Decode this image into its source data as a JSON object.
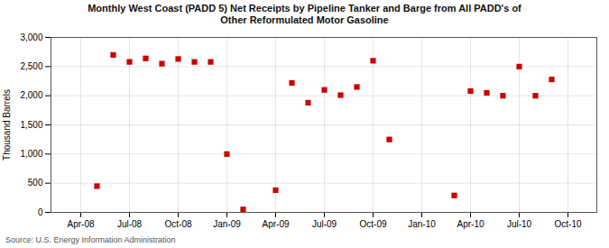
{
  "chart_data": {
    "type": "scatter",
    "title": "Monthly West Coast (PADD 5) Net Receipts by Pipeline Tanker and Barge from All PADD's of\nOther Reformulated Motor Gasoline",
    "ylabel": "Thousand Barrels",
    "source": "Source: U.S. Energy Information Administration",
    "color": "#cc0000",
    "marker": "square",
    "grid": true,
    "categories": [
      null,
      "Apr-08",
      null,
      null,
      "Jul-08",
      null,
      null,
      "Oct-08",
      null,
      null,
      "Jan-09",
      null,
      null,
      "Apr-09",
      null,
      null,
      "Jul-09",
      null,
      null,
      "Oct-09",
      null,
      null,
      "Jan-10",
      null,
      null,
      "Apr-10",
      null,
      null,
      "Jul-10",
      null,
      null,
      "Oct-10",
      null
    ],
    "values": [
      null,
      null,
      450,
      2700,
      2580,
      2640,
      2550,
      2630,
      2580,
      2580,
      1000,
      50,
      null,
      380,
      2220,
      1880,
      2100,
      2010,
      2150,
      2600,
      1250,
      null,
      null,
      null,
      290,
      2080,
      2050,
      2000,
      2500,
      2000,
      2280,
      null,
      null
    ],
    "ylim": [
      0,
      3000
    ],
    "yticks": [
      0,
      500,
      {
        "value": 1000,
        "label": "1,000"
      },
      {
        "value": 1500,
        "label": "1,500"
      },
      {
        "value": 2000,
        "label": "2,000"
      },
      {
        "value": 2500,
        "label": "2,500"
      },
      {
        "value": 3000,
        "label": "3,000"
      }
    ]
  }
}
